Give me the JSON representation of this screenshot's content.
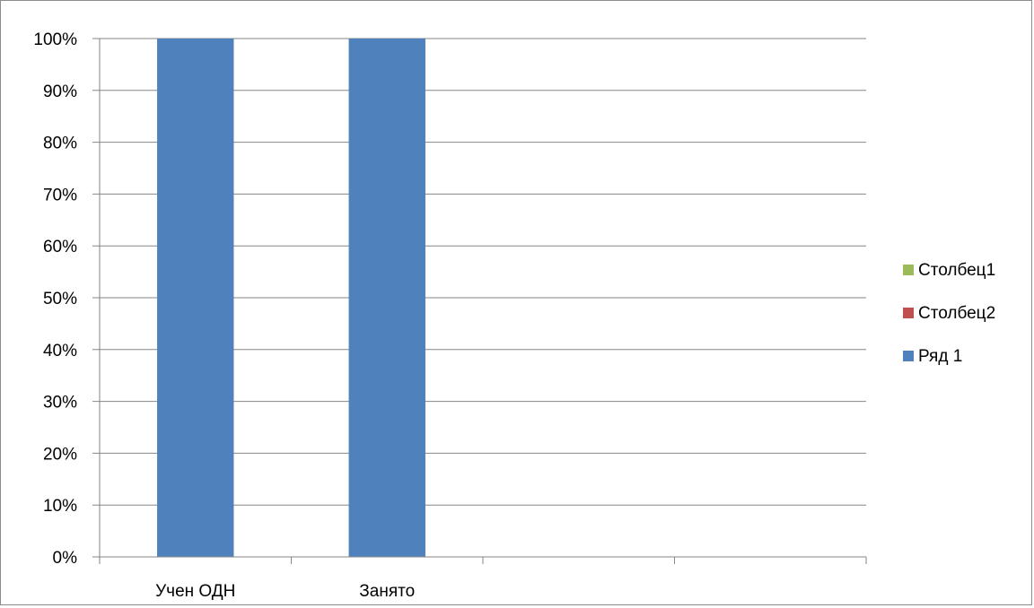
{
  "chart_data": {
    "type": "bar",
    "stacked": "percent",
    "categories": [
      "Учен ОДН",
      "Занято",
      "",
      ""
    ],
    "series": [
      {
        "name": "Ряд 1",
        "color": "#4f81bd",
        "values": [
          100,
          100,
          0,
          0
        ]
      },
      {
        "name": "Столбец2",
        "color": "#c0504d",
        "values": [
          0,
          0,
          0,
          0
        ]
      },
      {
        "name": "Столбец1",
        "color": "#9bbb59",
        "values": [
          0,
          0,
          0,
          0
        ]
      }
    ],
    "yticks": [
      "0%",
      "10%",
      "20%",
      "30%",
      "40%",
      "50%",
      "60%",
      "70%",
      "80%",
      "90%",
      "100%"
    ],
    "ylim": [
      0,
      100
    ],
    "grid": true,
    "legend_position": "right",
    "legend": [
      {
        "name": "Столбец1",
        "color": "#9bbb59"
      },
      {
        "name": "Столбец2",
        "color": "#c0504d"
      },
      {
        "name": "Ряд 1",
        "color": "#4f81bd"
      }
    ]
  }
}
